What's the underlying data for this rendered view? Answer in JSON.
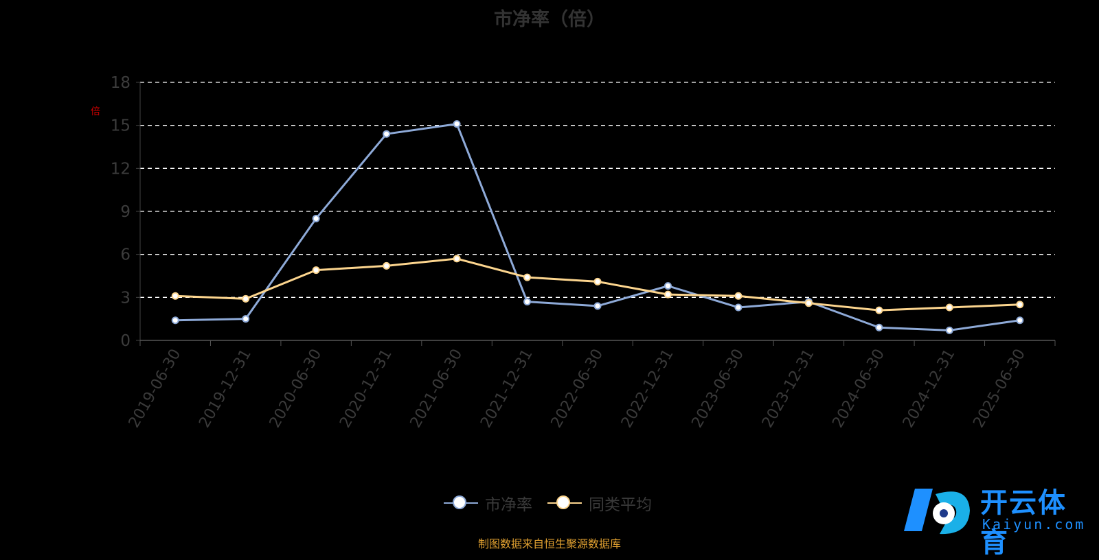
{
  "chart_data": {
    "type": "line",
    "title": "市净率（倍）",
    "unit": "倍",
    "categories": [
      "2019-06-30",
      "2019-12-31",
      "2020-06-30",
      "2020-12-31",
      "2021-06-30",
      "2021-12-31",
      "2022-06-30",
      "2022-12-31",
      "2023-06-30",
      "2023-12-31",
      "2024-06-30",
      "2024-12-31",
      "2025-06-30"
    ],
    "series": [
      {
        "name": "市净率",
        "color": "#8eaad8",
        "values": [
          1.4,
          1.5,
          8.5,
          14.4,
          15.1,
          2.7,
          2.4,
          3.8,
          2.3,
          2.7,
          0.9,
          0.7,
          1.4
        ]
      },
      {
        "name": "同类平均",
        "color": "#fcd58e",
        "values": [
          3.1,
          2.9,
          4.9,
          5.2,
          5.7,
          4.4,
          4.1,
          3.2,
          3.1,
          2.6,
          2.1,
          2.3,
          2.5
        ]
      }
    ],
    "yticks": [
      0,
      3,
      6,
      9,
      12,
      15,
      18
    ],
    "ylim": [
      0,
      18
    ],
    "grid": true,
    "legend_position": "bottom-center"
  },
  "source_note": "制图数据来自恒生聚源数据库",
  "logo": {
    "name": "开云体育",
    "sub": "Kaiyun.com"
  }
}
